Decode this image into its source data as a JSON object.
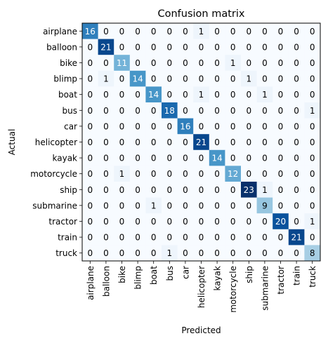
{
  "chart_data": {
    "type": "heatmap",
    "title": "Confusion matrix",
    "xlabel": "Predicted",
    "ylabel": "Actual",
    "labels": [
      "airplane",
      "balloon",
      "bike",
      "blimp",
      "boat",
      "bus",
      "car",
      "helicopter",
      "kayak",
      "motorcycle",
      "ship",
      "submarine",
      "tractor",
      "train",
      "truck"
    ],
    "matrix": [
      [
        16,
        0,
        0,
        0,
        0,
        0,
        0,
        1,
        0,
        0,
        0,
        0,
        0,
        0,
        0
      ],
      [
        0,
        21,
        0,
        0,
        0,
        0,
        0,
        0,
        0,
        0,
        0,
        0,
        0,
        0,
        0
      ],
      [
        0,
        0,
        11,
        0,
        0,
        0,
        0,
        0,
        0,
        1,
        0,
        0,
        0,
        0,
        0
      ],
      [
        0,
        1,
        0,
        14,
        0,
        0,
        0,
        0,
        0,
        0,
        1,
        0,
        0,
        0,
        0
      ],
      [
        0,
        0,
        0,
        0,
        14,
        0,
        0,
        1,
        0,
        0,
        0,
        1,
        0,
        0,
        0
      ],
      [
        0,
        0,
        0,
        0,
        0,
        18,
        0,
        0,
        0,
        0,
        0,
        0,
        0,
        0,
        1
      ],
      [
        0,
        0,
        0,
        0,
        0,
        0,
        16,
        0,
        0,
        0,
        0,
        0,
        0,
        0,
        0
      ],
      [
        0,
        0,
        0,
        0,
        0,
        0,
        0,
        21,
        0,
        0,
        0,
        0,
        0,
        0,
        0
      ],
      [
        0,
        0,
        0,
        0,
        0,
        0,
        0,
        0,
        14,
        0,
        0,
        0,
        0,
        0,
        0
      ],
      [
        0,
        0,
        1,
        0,
        0,
        0,
        0,
        0,
        0,
        12,
        0,
        0,
        0,
        0,
        0
      ],
      [
        0,
        0,
        0,
        0,
        0,
        0,
        0,
        0,
        0,
        0,
        23,
        1,
        0,
        0,
        0
      ],
      [
        0,
        0,
        0,
        0,
        1,
        0,
        0,
        0,
        0,
        0,
        0,
        9,
        0,
        0,
        0
      ],
      [
        0,
        0,
        0,
        0,
        0,
        0,
        0,
        0,
        0,
        0,
        0,
        0,
        20,
        0,
        1
      ],
      [
        0,
        0,
        0,
        0,
        0,
        0,
        0,
        0,
        0,
        0,
        0,
        0,
        0,
        21,
        0
      ],
      [
        0,
        0,
        0,
        0,
        0,
        1,
        0,
        0,
        0,
        0,
        0,
        0,
        0,
        0,
        8
      ]
    ],
    "value_range": [
      0,
      23
    ],
    "colormap": [
      "#f7fbff",
      "#08306b"
    ]
  }
}
